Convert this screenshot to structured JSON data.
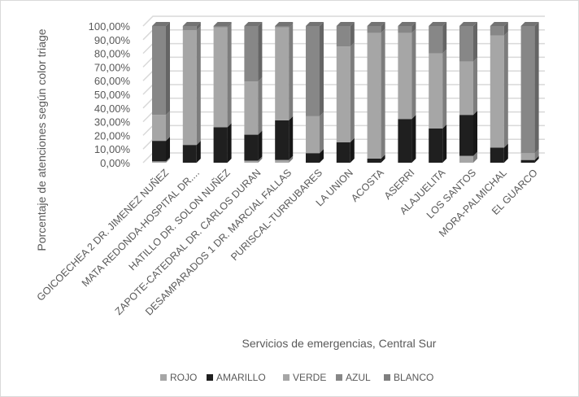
{
  "chart_data": {
    "type": "bar",
    "stacked": "percent",
    "xlabel": "Servicios de emergencias, Central Sur",
    "ylabel": "Porcentaje de atenciones según color triage",
    "ylim": [
      0,
      100
    ],
    "yticks": [
      "0,00%",
      "10,00%",
      "20,00%",
      "30,00%",
      "40,00%",
      "50,00%",
      "60,00%",
      "70,00%",
      "80,00%",
      "90,00%",
      "100,00%"
    ],
    "legend_position": "bottom",
    "categories": [
      "GOICOECHEA 2 DR. JIMENEZ NUÑEZ",
      "MATA REDONDA-HOSPITAL DR....",
      "HATILLO DR. SOLON NUÑEZ",
      "ZAPOTE-CATEDRAL DR. CARLOS DURAN",
      "DESAMPARADOS 1 DR. MARCIAL FALLAS",
      "PURISCAL-TURRUBARES",
      "LA UNION",
      "ACOSTA",
      "ASERRI",
      "ALAJUELITA",
      "LOS SANTOS",
      "MORA-PALMICHAL",
      "EL GUARCO"
    ],
    "series": [
      {
        "name": "ROJO",
        "color": "#a6a6a6",
        "values": [
          1,
          0,
          0,
          1.5,
          2,
          0,
          0,
          0,
          0,
          0,
          5,
          0,
          0
        ]
      },
      {
        "name": "AMARILLO",
        "color": "#1f1f1f",
        "values": [
          15,
          13,
          26,
          19,
          29,
          7,
          15,
          3,
          32,
          25,
          30,
          11,
          2
        ]
      },
      {
        "name": "VERDE",
        "color": "#a6a6a6",
        "values": [
          19,
          84,
          73,
          39,
          68,
          27,
          70,
          92,
          63,
          55,
          39,
          82,
          5
        ]
      },
      {
        "name": "AZUL",
        "color": "#878787",
        "values": [
          65,
          3,
          1,
          40.5,
          1,
          66,
          15,
          5,
          5,
          20,
          26,
          7,
          93
        ]
      },
      {
        "name": "BLANCO",
        "color": "#7f7f7f",
        "values": [
          0,
          0,
          0,
          0,
          0,
          0,
          0,
          0,
          0,
          0,
          0,
          0,
          0
        ]
      }
    ]
  }
}
